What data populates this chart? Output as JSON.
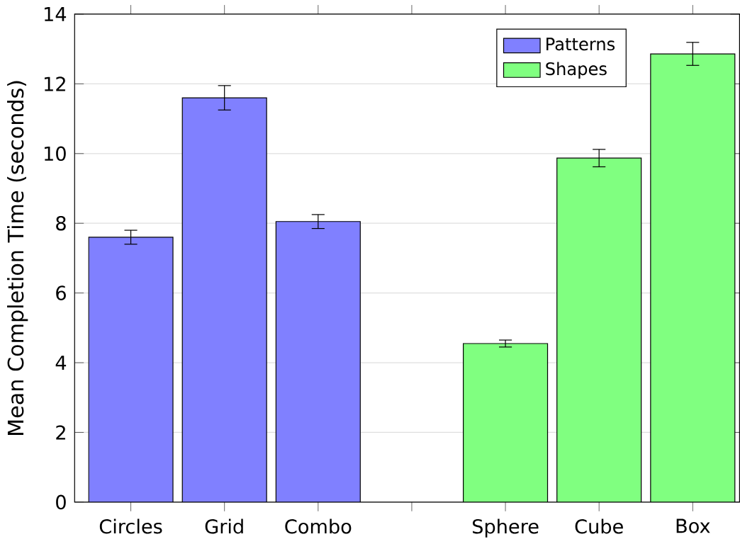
{
  "chart_data": {
    "type": "bar",
    "ylabel": "Mean Completion Time (seconds)",
    "categories": [
      "Circles",
      "Grid",
      "Combo",
      null,
      "Sphere",
      "Cube",
      "Box"
    ],
    "series": [
      {
        "name": "Patterns",
        "color": "#8080ff",
        "values": [
          7.6,
          11.6,
          8.05,
          null,
          null,
          null,
          null
        ],
        "errors": [
          0.2,
          0.35,
          0.2,
          null,
          null,
          null,
          null
        ]
      },
      {
        "name": "Shapes",
        "color": "#80ff80",
        "values": [
          null,
          null,
          null,
          null,
          4.55,
          9.87,
          12.86
        ],
        "errors": [
          null,
          null,
          null,
          null,
          0.1,
          0.25,
          0.33
        ]
      }
    ],
    "ylim": [
      0,
      14
    ],
    "yticks": [
      0,
      2,
      4,
      6,
      8,
      10,
      12,
      14
    ],
    "grid": "y",
    "legend": "top right"
  }
}
